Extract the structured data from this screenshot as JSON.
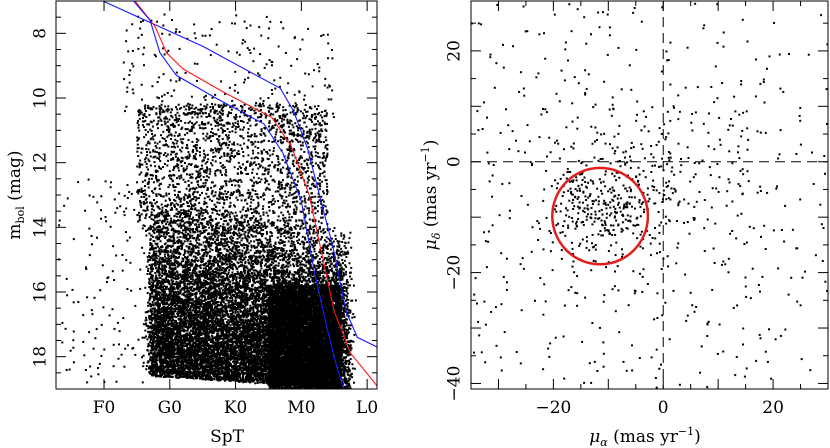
{
  "chart_data": [
    {
      "type": "scatter",
      "panel": "left",
      "xlabel": "SpT",
      "ylabel": "m",
      "ylabel_sub": "bol",
      "ylabel_unit": "(mag)",
      "x_ticks": [
        "F0",
        "G0",
        "K0",
        "M0",
        "L0"
      ],
      "x_tick_index": [
        0,
        1,
        2,
        3,
        4
      ],
      "xlim": [
        -0.73,
        4.15
      ],
      "ylim": [
        19.0,
        7.0
      ],
      "y_ticks": [
        8,
        10,
        12,
        14,
        16,
        18
      ],
      "y_invert": true,
      "isochrone_colors": {
        "blue": "#1a1aff",
        "red": "#ff1a1a"
      },
      "isochrones": [
        {
          "color": "blue",
          "points": [
            [
              -0.45,
              6.6
            ],
            [
              1.5,
              8.4
            ],
            [
              2.68,
              9.7
            ],
            [
              2.88,
              10.4
            ],
            [
              3.1,
              11.6
            ],
            [
              3.3,
              13.2
            ],
            [
              3.48,
              14.6
            ],
            [
              3.68,
              16.6
            ],
            [
              3.85,
              17.4
            ],
            [
              4.15,
              17.7
            ]
          ]
        },
        {
          "color": "red",
          "points": [
            [
              0.32,
              6.6
            ],
            [
              0.78,
              7.8
            ],
            [
              0.95,
              8.6
            ],
            [
              1.2,
              9.1
            ],
            [
              1.8,
              9.8
            ],
            [
              2.55,
              10.6
            ],
            [
              2.85,
              11.5
            ],
            [
              3.12,
              13.0
            ],
            [
              3.32,
              14.9
            ],
            [
              3.5,
              16.6
            ],
            [
              3.75,
              17.9
            ],
            [
              4.15,
              18.9
            ]
          ]
        },
        {
          "color": "blue",
          "points": [
            [
              0.28,
              6.6
            ],
            [
              0.7,
              7.6
            ],
            [
              0.85,
              8.6
            ],
            [
              1.1,
              9.3
            ],
            [
              1.7,
              10.0
            ],
            [
              2.43,
              10.8
            ],
            [
              2.72,
              11.7
            ],
            [
              3.0,
              13.2
            ],
            [
              3.2,
              15.4
            ],
            [
              3.4,
              17.2
            ],
            [
              3.55,
              18.4
            ],
            [
              3.65,
              19.0
            ]
          ]
        }
      ],
      "scatter_points": "dense field of several thousand stars from F0 to M6; densest region between G0 and M4 at m_bol 14-19"
    },
    {
      "type": "scatter",
      "panel": "right",
      "xlabel": "μ",
      "xlabel_sub": "α",
      "xlabel_unit": "(mas yr",
      "ylabel": "μ",
      "ylabel_sub": "δ",
      "ylabel_unit": "(mas yr",
      "unit_exp": "−1",
      "unit_close": ")",
      "xlim": [
        -35,
        30
      ],
      "ylim": [
        -41,
        29
      ],
      "x_ticks": [
        -20,
        0,
        20
      ],
      "x_tick_labels": [
        "−20",
        "0",
        "20"
      ],
      "y_ticks": [
        -40,
        -20,
        0,
        20
      ],
      "y_tick_labels": [
        "−40",
        "−20",
        "0",
        "20"
      ],
      "reference_lines": {
        "x": 0,
        "y": 0
      },
      "selection_circle": {
        "center": [
          -11.5,
          -9.8
        ],
        "radius": 8.7,
        "color": "#e02020"
      },
      "cluster_center": [
        -11.5,
        -8.8
      ]
    }
  ]
}
